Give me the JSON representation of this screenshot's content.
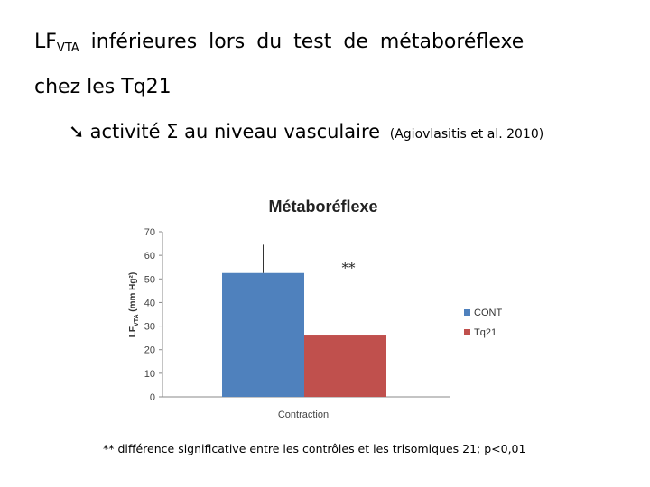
{
  "slide": {
    "title_main": "LF",
    "title_sub": "VTA",
    "title_rest": " inférieures lors du test de métaboréflexe",
    "title_line2": "chez les Tq21",
    "bullet_arrow": "➘",
    "bullet_text": "activité Σ au niveau vasculaire",
    "bullet_citation": "(Agiovlasitis et al. 2010)",
    "footnote": "** différence significative entre les contrôles et les trisomiques 21; p<0,01"
  },
  "chart_data": {
    "type": "bar",
    "title": "Métaboréflexe",
    "categories": [
      "Contraction"
    ],
    "series": [
      {
        "name": "CONT",
        "values": [
          52.5
        ],
        "error": [
          12
        ],
        "color": "#4F81BD"
      },
      {
        "name": "Tq21",
        "values": [
          26
        ],
        "error": [
          0
        ],
        "color": "#C0504D"
      }
    ],
    "ylabel_main": "LF",
    "ylabel_sub": "VTA",
    "ylabel_unit": " (mm Hg²)",
    "ylim": [
      0,
      70
    ],
    "yticks": [
      "0",
      "10",
      "20",
      "30",
      "40",
      "50",
      "60",
      "70"
    ],
    "annotation": "**",
    "legend_position": "right",
    "grid": false
  }
}
